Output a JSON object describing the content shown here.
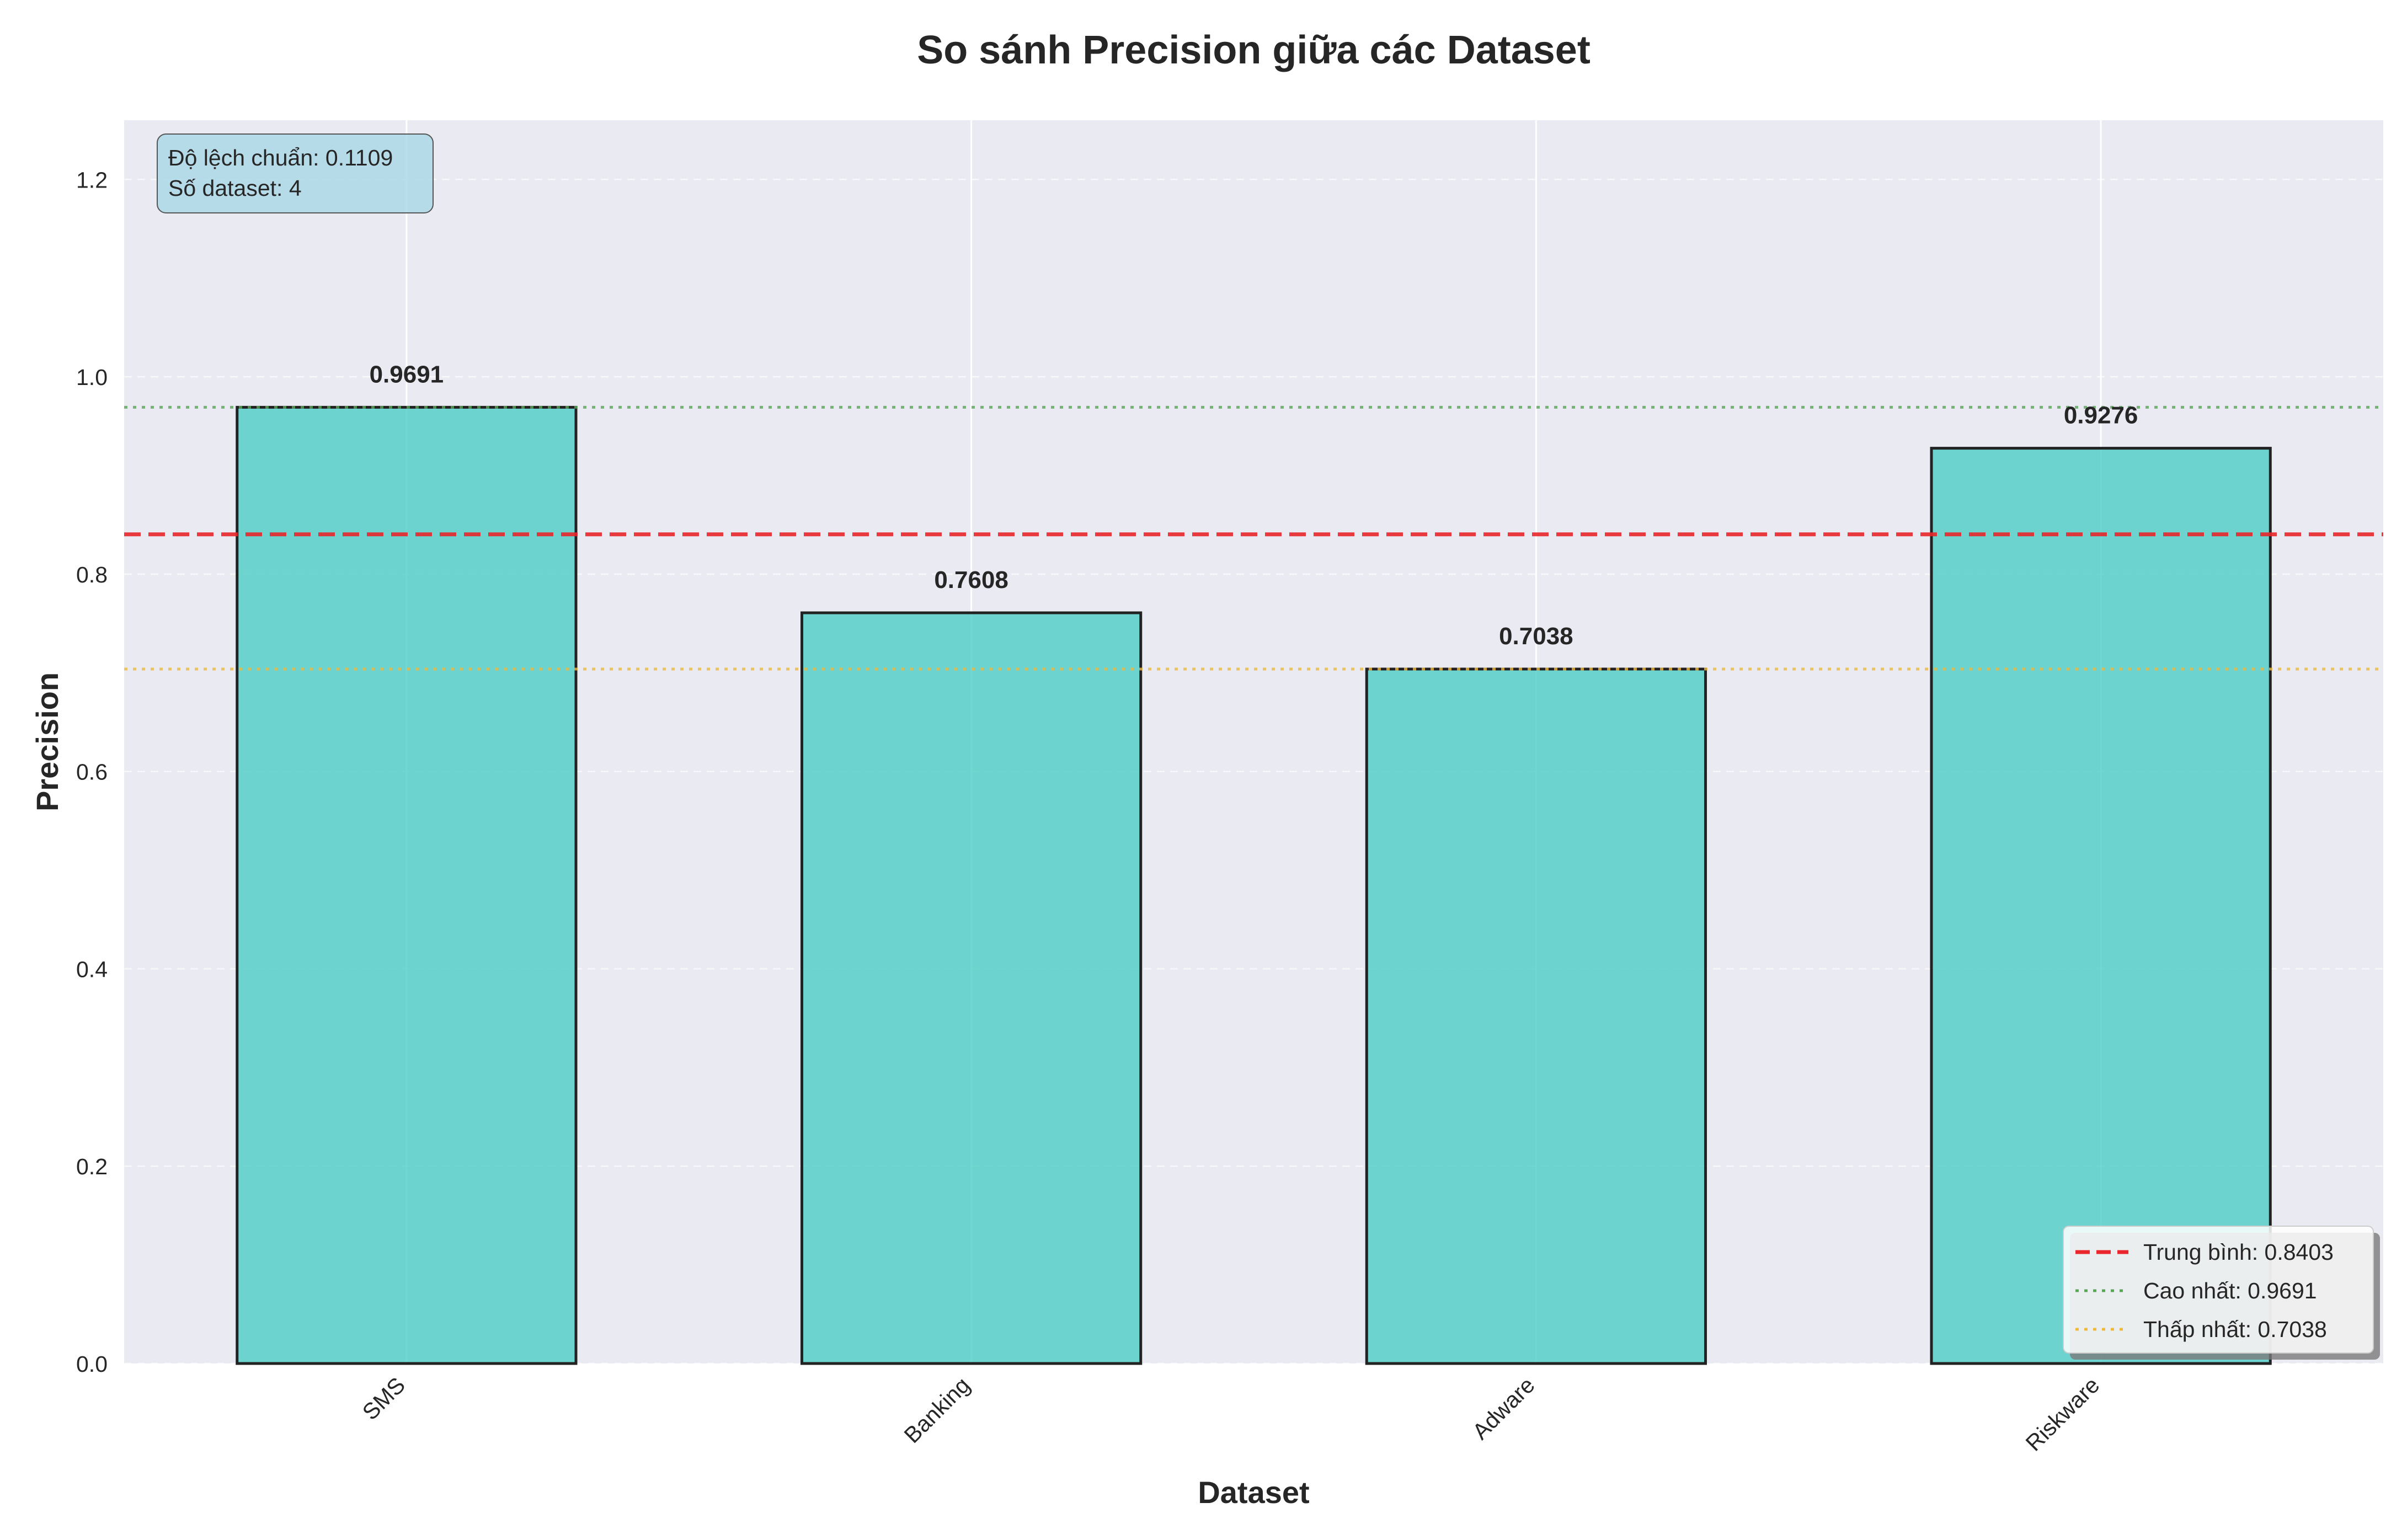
{
  "chart_data": {
    "type": "bar",
    "title": "So sánh Precision giữa các Dataset",
    "xlabel": "Dataset",
    "ylabel": "Precision",
    "categories": [
      "SMS",
      "Banking",
      "Adware",
      "Riskware"
    ],
    "values": [
      0.9691,
      0.7608,
      0.7038,
      0.9276
    ],
    "value_labels": [
      "0.9691",
      "0.7608",
      "0.7038",
      "0.9276"
    ],
    "ylim": [
      0,
      1.26
    ],
    "yticks": [
      0.0,
      0.2,
      0.4,
      0.6,
      0.8,
      1.0,
      1.2
    ],
    "ytick_labels": [
      "0.0",
      "0.2",
      "0.4",
      "0.6",
      "0.8",
      "1.0",
      "1.2"
    ],
    "grid": true,
    "bar_color": "#4ecdc4",
    "bar_edge_color": "#222222",
    "plot_background": "#eaeaf2",
    "reference_lines": [
      {
        "label": "Trung bình: 0.8403",
        "value": 0.8403,
        "color": "#e8262b",
        "style": "dashed"
      },
      {
        "label": "Cao nhất: 0.9691",
        "value": 0.9691,
        "color": "#5aa55a",
        "style": "dotted"
      },
      {
        "label": "Thấp nhất: 0.7038",
        "value": 0.7038,
        "color": "#f0b83c",
        "style": "dotted"
      }
    ],
    "legend_position": "lower-right",
    "stats_box": {
      "lines": [
        "Độ lệch chuẩn: 0.1109",
        "Số dataset: 4"
      ],
      "position": "top-left",
      "background": "#add8e6"
    }
  }
}
